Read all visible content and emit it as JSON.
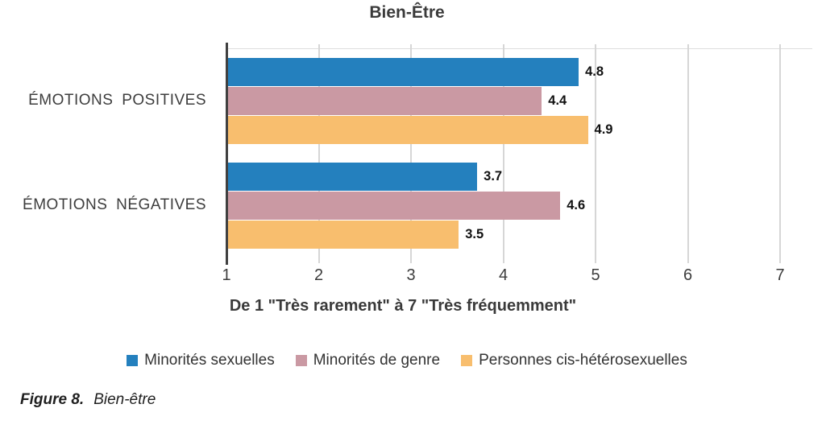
{
  "chart_data": {
    "type": "bar",
    "orientation": "horizontal",
    "title": "Bien-Être",
    "xlabel": "De 1 \"Très rarement\" à 7 \"Très fréquemment\"",
    "xlim": [
      1,
      7
    ],
    "xticks": [
      1,
      2,
      3,
      4,
      5,
      6,
      7
    ],
    "grid": "vertical-gridlines-on",
    "legend_position": "bottom-center",
    "value_labels": true,
    "categories": [
      "ÉMOTIONS POSITIVES",
      "ÉMOTIONS NÉGATIVES"
    ],
    "series": [
      {
        "name": "Minorités sexuelles",
        "color": "#2480BE",
        "values": [
          4.8,
          3.7
        ]
      },
      {
        "name": "Minorités de genre",
        "color": "#CA99A3",
        "values": [
          4.4,
          4.6
        ]
      },
      {
        "name": "Personnes cis-hétérosexuelles",
        "color": "#F8BE6E",
        "values": [
          4.9,
          3.5
        ]
      }
    ]
  },
  "caption": {
    "label": "Figure 8.",
    "text": "Bien-être"
  },
  "colors": {
    "gridline": "#d6d6d6",
    "axis_line": "#404040",
    "tick_text": "#3d3d3d",
    "title_text": "#3b3b3b",
    "value_text": "#111111",
    "background": "#ffffff"
  }
}
